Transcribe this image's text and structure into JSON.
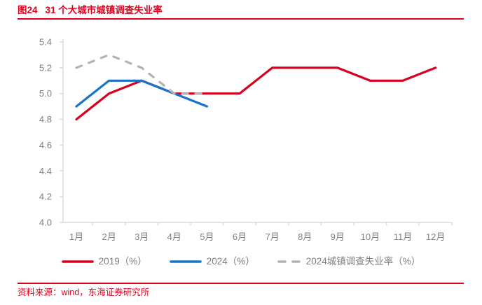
{
  "header": {
    "figure_label": "图24",
    "title": "31 个大城市城镇调查失业率"
  },
  "footer": {
    "source": "资料来源：wind，东海证券研究所"
  },
  "colors": {
    "accent_red": "#e4001f",
    "series_red": "#d7001f",
    "series_blue": "#1874c8",
    "series_gray": "#b3b3b3",
    "axis_line": "#d9d9d9",
    "tick_text": "#808080",
    "legend_text": "#7f7f7f"
  },
  "chart_data": {
    "type": "line",
    "title": "31 个大城市城镇调查失业率",
    "xlabel": "",
    "ylabel": "",
    "categories": [
      "1月",
      "2月",
      "3月",
      "4月",
      "5月",
      "6月",
      "7月",
      "8月",
      "9月",
      "10月",
      "11月",
      "12月"
    ],
    "series": [
      {
        "name": "2019（%）",
        "color_key": "series_red",
        "dash": false,
        "values": [
          4.8,
          5.0,
          5.1,
          5.0,
          5.0,
          5.0,
          5.2,
          5.2,
          5.2,
          5.1,
          5.1,
          5.2
        ]
      },
      {
        "name": "2024（%）",
        "color_key": "series_blue",
        "dash": false,
        "values": [
          4.9,
          5.1,
          5.1,
          5.0,
          4.9
        ]
      },
      {
        "name": "2024城镇调查失业率（%）",
        "color_key": "series_gray",
        "dash": true,
        "values": [
          5.2,
          5.3,
          5.2,
          5.0,
          5.0
        ]
      }
    ],
    "ylim": [
      4.0,
      5.4
    ],
    "ytick_step": 0.2,
    "grid": false,
    "legend_position": "bottom"
  }
}
